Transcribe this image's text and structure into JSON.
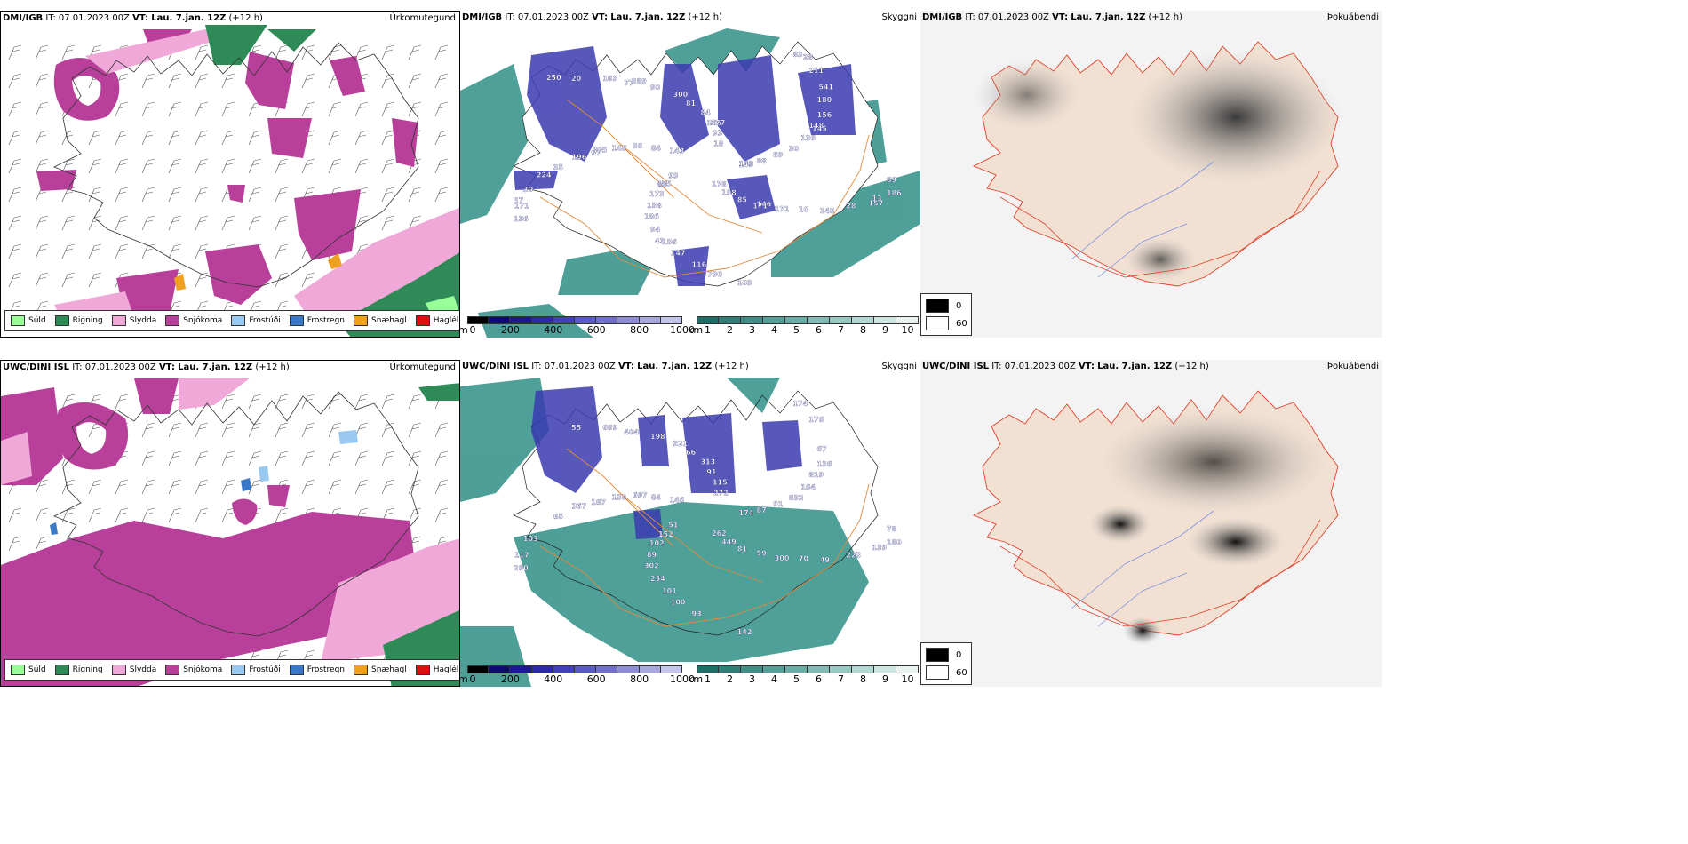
{
  "header_parts": {
    "it_label": "IT:",
    "vt_label": "VT:"
  },
  "rows": [
    {
      "model": "DMI/IGB",
      "it_value": "07.01.2023 00Z",
      "vt_value": "Lau. 7.jan. 12Z",
      "lead": "(+12 h)",
      "panels": {
        "precip": {
          "variable": "Úrkomutegund"
        },
        "cloud": {
          "variable": "Skyggni",
          "numbers": [
            "133",
            "97",
            "106",
            "146",
            "97",
            "148",
            "156",
            "77",
            "13",
            "171",
            "83",
            "178",
            "84",
            "89",
            "158",
            "81",
            "10",
            "35",
            "180",
            "116",
            "20",
            "89",
            "99",
            "93",
            "85",
            "146",
            "136",
            "94",
            "90",
            "28",
            "30",
            "211",
            "103",
            "143",
            "98",
            "173",
            "84",
            "171",
            "196",
            "156",
            "147",
            "163",
            "186",
            "136",
            "18",
            "198",
            "36",
            "30",
            "186",
            "300",
            "145",
            "224",
            "541",
            "790",
            "250",
            "149",
            "855",
            "577",
            "171",
            "805",
            "145",
            "43",
            "389",
            "157",
            "57",
            "28"
          ]
        },
        "fog": {
          "variable": "Þokuábendi"
        }
      }
    },
    {
      "model": "UWC/DINI ISL",
      "it_value": "07.01.2023 00Z",
      "vt_value": "Lau. 7.jan. 12Z",
      "lead": "(+12 h)",
      "panels": {
        "precip": {
          "variable": "Úrkomutegund"
        },
        "cloud": {
          "variable": "Skyggni",
          "numbers": [
            "174",
            "152",
            "91",
            "59",
            "167",
            "819",
            "101",
            "404",
            "139",
            "117",
            "174",
            "262",
            "84",
            "91",
            "89",
            "66",
            "70",
            "65",
            "67",
            "93",
            "55",
            "78",
            "51",
            "115",
            "81",
            "130",
            "164",
            "234",
            "198",
            "223",
            "103",
            "176",
            "142",
            "146",
            "87",
            "102",
            "313",
            "300",
            "367",
            "136",
            "100",
            "669",
            "180",
            "290",
            "272",
            "449",
            "697",
            "832",
            "302",
            "321",
            "49"
          ]
        },
        "fog": {
          "variable": "Þokuábendi"
        }
      }
    }
  ],
  "precip_legend": [
    {
      "label": "Súld",
      "color": "#99ff99"
    },
    {
      "label": "Rigning",
      "color": "#2e8b57"
    },
    {
      "label": "Slydda",
      "color": "#f0a8d8"
    },
    {
      "label": "Snjókoma",
      "color": "#b8409a"
    },
    {
      "label": "Frostúði",
      "color": "#99c8f0"
    },
    {
      "label": "Frostregn",
      "color": "#3a78c8"
    },
    {
      "label": "Snæhagl",
      "color": "#f0a020"
    },
    {
      "label": "Haglél",
      "color": "#e01010"
    }
  ],
  "cloud_base_scale": {
    "unit": "m",
    "ticks": [
      "0",
      "200",
      "400",
      "600",
      "800",
      "1000"
    ],
    "colors": [
      "#000000",
      "#0c0c6e",
      "#1a1a8c",
      "#2b2ba6",
      "#4040b8",
      "#5a5ac4",
      "#7070cc",
      "#8c8cd8",
      "#a8a8e0",
      "#c4c4ec"
    ]
  },
  "visibility_scale": {
    "unit": "km",
    "ticks": [
      "1",
      "2",
      "3",
      "4",
      "5",
      "6",
      "7",
      "8",
      "9",
      "10"
    ],
    "colors": [
      "#1e6e68",
      "#2f7f78",
      "#3f8f88",
      "#52a098",
      "#68aea6",
      "#80bcb5",
      "#98cac4",
      "#b2d8d3",
      "#cde6e2",
      "#e8f3f1"
    ]
  },
  "fog_legend": {
    "values": [
      "0",
      "60"
    ],
    "colors": [
      "#000000",
      "#ffffff"
    ]
  },
  "colors": {
    "snow": "#b8409a",
    "sleet": "#f0a8d8",
    "rain": "#2e8b57",
    "drizzle": "#99ff99",
    "teal": "#2f8f86",
    "cloud_blue": "#3b3bb0",
    "land_beige": "#f2e1d2",
    "roads_orange": "#e38a3c",
    "roads_red": "#e0402a",
    "rivers_blue": "#7d92e0"
  }
}
